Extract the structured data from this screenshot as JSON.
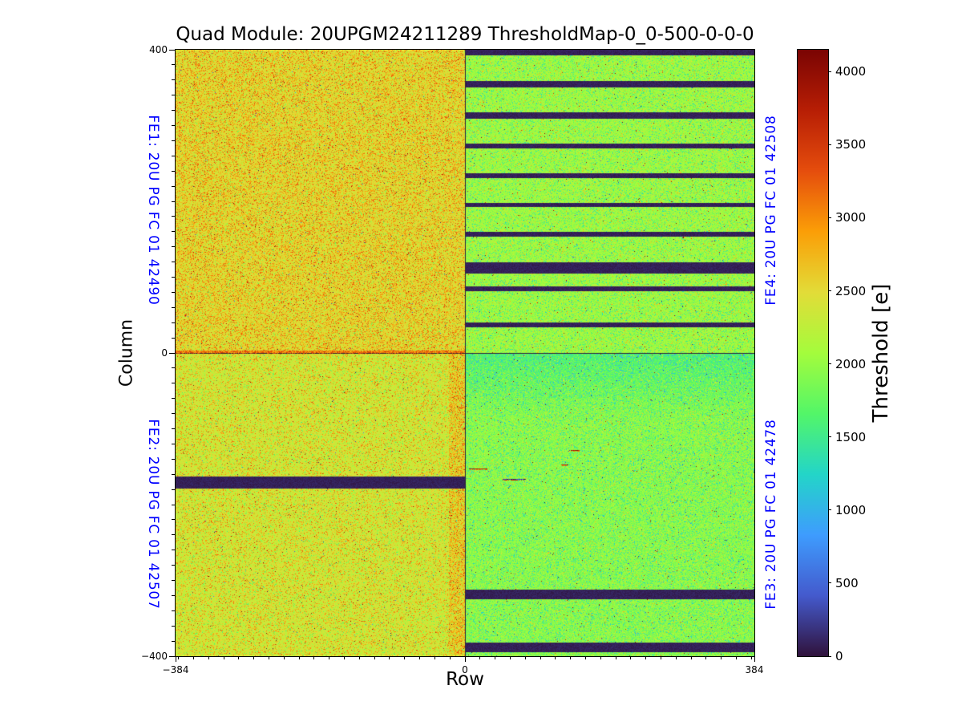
{
  "chart_data": {
    "type": "heatmap",
    "title": "Quad Module: 20UPGM24211289 ThresholdMap-0_0-500-0-0-0",
    "xlabel": "Row",
    "ylabel": "Column",
    "colorbar_label": "Threshold [e]",
    "colormap": "turbo",
    "colormap_stops": [
      "#30123b",
      "#445acd",
      "#3e9cfe",
      "#23d5c8",
      "#53f668",
      "#a4fc3c",
      "#e2dc38",
      "#fb9e07",
      "#e54d0d",
      "#b71e05",
      "#7a0403"
    ],
    "value_range": [
      0,
      4150
    ],
    "xlim": [
      -384,
      384
    ],
    "ylim": [
      -400,
      400
    ],
    "grid": false,
    "legend": "colorbar-right",
    "xticks": [
      {
        "value": -384,
        "label": "−384"
      },
      {
        "value": 0,
        "label": "0"
      },
      {
        "value": 384,
        "label": "384"
      }
    ],
    "yticks": [
      {
        "value": 400,
        "label": "400"
      },
      {
        "value": 0,
        "label": "0"
      },
      {
        "value": -400,
        "label": "−400"
      }
    ],
    "minor_tick_step": 20,
    "colorbar_ticks": [
      {
        "value": 0,
        "label": "0"
      },
      {
        "value": 500,
        "label": "500"
      },
      {
        "value": 1000,
        "label": "1000"
      },
      {
        "value": 1500,
        "label": "1500"
      },
      {
        "value": 2000,
        "label": "2000"
      },
      {
        "value": 2500,
        "label": "2500"
      },
      {
        "value": 3000,
        "label": "3000"
      },
      {
        "value": 3500,
        "label": "3500"
      },
      {
        "value": 4000,
        "label": "4000"
      }
    ],
    "label_color": "#0000ff",
    "quadrants": [
      {
        "id": "FE1",
        "label": "FE1: 20U PG FC 01 42490",
        "position": "top-left",
        "mean_threshold": 2480,
        "spread": 170,
        "p_high": 0.2,
        "p_low": 0.05,
        "p_red": 0.006,
        "p_dark": 0.0025,
        "dead_bands": [],
        "warm_bottom_rows": 3
      },
      {
        "id": "FE4",
        "label": "FE4: 20U PG FC 01 42508",
        "position": "top-right",
        "mean_threshold": 2060,
        "spread": 150,
        "p_high": 0.05,
        "p_low": 0.12,
        "p_red": 0.004,
        "p_dark": 0.003,
        "dead_bands": [
          [
            0.0,
            0.016
          ],
          [
            0.103,
            0.122
          ],
          [
            0.206,
            0.225
          ],
          [
            0.307,
            0.325
          ],
          [
            0.405,
            0.423
          ],
          [
            0.503,
            0.518
          ],
          [
            0.598,
            0.616
          ],
          [
            0.701,
            0.738
          ],
          [
            0.78,
            0.796
          ],
          [
            0.899,
            0.915
          ]
        ]
      },
      {
        "id": "FE2",
        "label": "FE2: 20U PG FC 01 42507",
        "position": "bottom-left",
        "mean_threshold": 2350,
        "spread": 170,
        "p_high": 0.14,
        "p_low": 0.06,
        "p_red": 0.005,
        "p_dark": 0.002,
        "dead_bands": [
          [
            0.405,
            0.447
          ]
        ],
        "warm_right_cols": 20
      },
      {
        "id": "FE3",
        "label": "FE3: 20U PG FC 01 42478",
        "position": "bottom-right",
        "mean_threshold": 1960,
        "spread": 150,
        "p_high": 0.05,
        "p_low": 0.12,
        "p_red": 0.003,
        "p_dark": 0.005,
        "dead_bands": [
          [
            0.78,
            0.81
          ],
          [
            0.955,
            0.985
          ]
        ],
        "cool_top": {
          "depth": 0.22,
          "delta": -320
        },
        "red_dashes": [
          {
            "x0": 0.014,
            "x1": 0.075,
            "y": 0.381,
            "kind": "red"
          },
          {
            "x0": 0.13,
            "x1": 0.208,
            "y": 0.415,
            "kind": "dark"
          },
          {
            "x0": 0.332,
            "x1": 0.354,
            "y": 0.368,
            "kind": "red"
          },
          {
            "x0": 0.366,
            "x1": 0.393,
            "y": 0.32,
            "kind": "red"
          }
        ]
      }
    ]
  }
}
